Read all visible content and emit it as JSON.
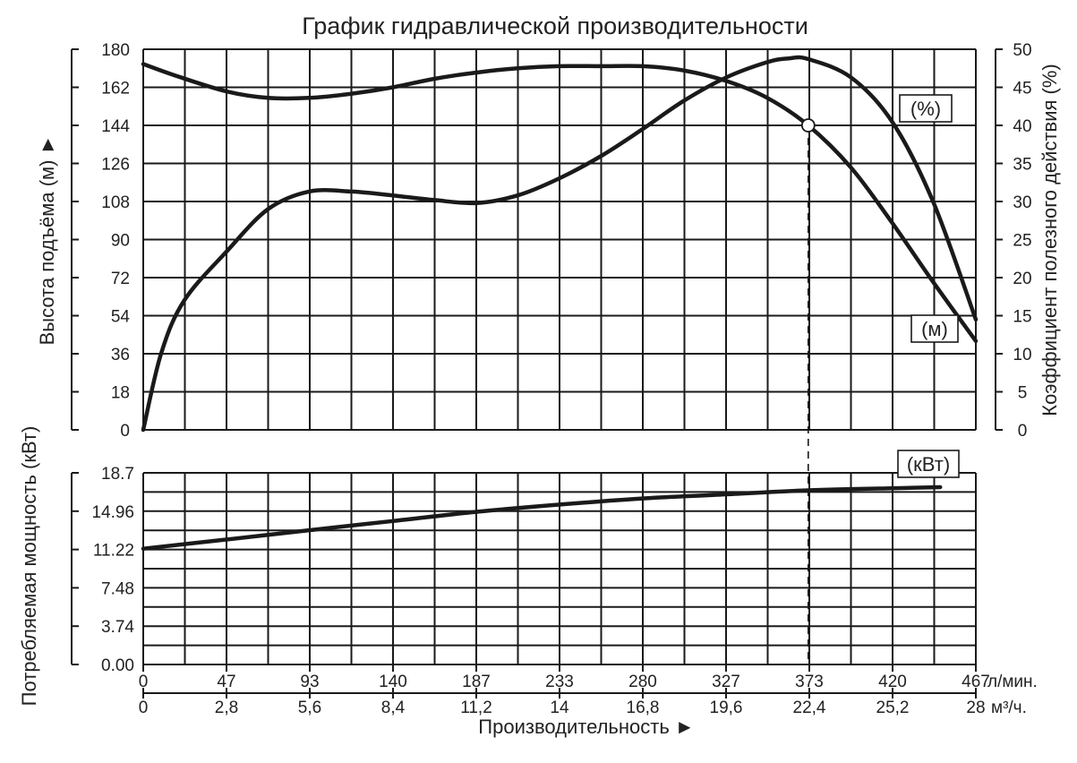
{
  "chart_data": [
    {
      "type": "line",
      "title": "График гидравлической производительности",
      "x_units_primary": "л/мин.",
      "x_units_secondary": "м³/ч.",
      "x_ticks_primary": [
        "0",
        "47",
        "93",
        "140",
        "187",
        "233",
        "280",
        "327",
        "373",
        "420",
        "467"
      ],
      "x_ticks_secondary": [
        "0",
        "2,8",
        "5,6",
        "8,4",
        "11,2",
        "14",
        "16,8",
        "19,6",
        "22,4",
        "25,2",
        "28"
      ],
      "xlabel": "Производительность ►",
      "xlim": [
        0,
        467
      ],
      "ylabel_left": "Высота подъёма (м) ►",
      "ylim_left": [
        0,
        180
      ],
      "y_ticks_left": [
        "0",
        "18",
        "36",
        "54",
        "72",
        "90",
        "108",
        "126",
        "144",
        "162",
        "180"
      ],
      "ylabel_right": "Коэффициент полезного действия (%)",
      "ylim_right": [
        0,
        50
      ],
      "y_ticks_right": [
        "0",
        "5",
        "10",
        "15",
        "20",
        "25",
        "30",
        "35",
        "40",
        "45",
        "50"
      ],
      "grid": true,
      "series": [
        {
          "name": "(м)",
          "axis": "left",
          "x": [
            0,
            20,
            47,
            70,
            93,
            117,
            140,
            163,
            187,
            210,
            233,
            257,
            280,
            303,
            327,
            350,
            373,
            397,
            420,
            443,
            467
          ],
          "values": [
            173,
            167,
            160,
            157,
            157,
            159,
            162,
            166,
            169,
            171,
            172,
            172,
            172,
            170,
            165,
            157,
            144,
            124,
            98,
            70,
            42
          ]
        },
        {
          "name": "(%)",
          "axis": "right",
          "x": [
            0,
            10,
            23,
            47,
            70,
            93,
            117,
            140,
            163,
            187,
            210,
            233,
            257,
            280,
            303,
            327,
            350,
            362,
            373,
            397,
            420,
            443,
            467
          ],
          "values": [
            0,
            10,
            17,
            23.5,
            29,
            31.3,
            31.3,
            30.8,
            30.2,
            29.8,
            30.8,
            33,
            36,
            39.5,
            43.2,
            46.3,
            48.3,
            48.8,
            48.7,
            46.3,
            40.5,
            30,
            14.5
          ]
        }
      ],
      "marker": {
        "x": 373,
        "y": 144,
        "label_x": "373",
        "label_y": "144"
      }
    },
    {
      "type": "line",
      "ylabel": "Потребляемая мощность (кВт)",
      "ylim": [
        0,
        18.7
      ],
      "y_ticks": [
        "0.00",
        "3.74",
        "7.48",
        "11.22",
        "14.96",
        "18.7"
      ],
      "xlim": [
        0,
        467
      ],
      "grid": true,
      "series": [
        {
          "name": "(кВт)",
          "x": [
            0,
            47,
            93,
            140,
            187,
            233,
            280,
            327,
            373,
            420,
            447
          ],
          "values": [
            11.3,
            12.2,
            13.1,
            14.0,
            14.9,
            15.6,
            16.2,
            16.6,
            17.0,
            17.2,
            17.3
          ]
        }
      ]
    }
  ]
}
